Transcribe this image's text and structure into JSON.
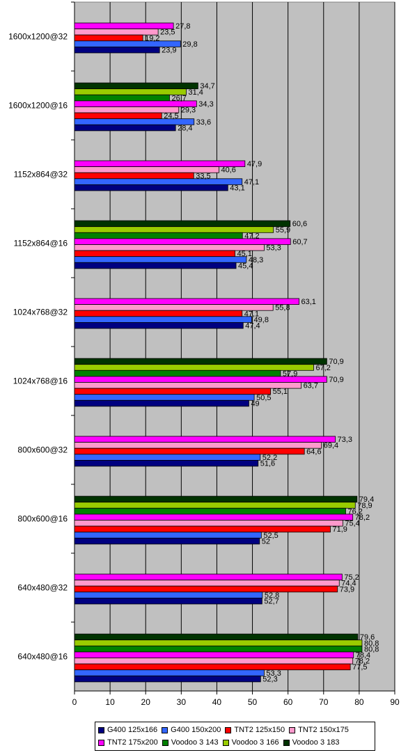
{
  "chart_data": {
    "type": "bar",
    "orientation": "horizontal",
    "xlim": [
      0,
      90
    ],
    "x_ticks": [
      0,
      10,
      20,
      30,
      40,
      50,
      60,
      70,
      80,
      90
    ],
    "grid": true,
    "legend_position": "bottom",
    "plot_background": "#c0c0c0",
    "series_order_top_to_bottom": [
      "Voodoo 3 183",
      "Voodoo 3 166",
      "Voodoo 3 143",
      "TNT2 175x200",
      "TNT2 150x175",
      "TNT2 125x150",
      "G400 150x200",
      "G400 125x166"
    ],
    "series": [
      {
        "name": "G400 125x166",
        "color": "#000080"
      },
      {
        "name": "G400 150x200",
        "color": "#3366ff"
      },
      {
        "name": "TNT2 125x150",
        "color": "#ff0000"
      },
      {
        "name": "TNT2 150x175",
        "color": "#ff99cc"
      },
      {
        "name": "TNT2 175x200",
        "color": "#ff00ff"
      },
      {
        "name": "Voodoo 3 143",
        "color": "#008000"
      },
      {
        "name": "Voodoo 3 166",
        "color": "#99cc00"
      },
      {
        "name": "Voodoo 3 183",
        "color": "#003300"
      }
    ],
    "categories": [
      {
        "label": "1600x1200@32",
        "values": {
          "G400 125x166": 23.9,
          "G400 150x200": 29.8,
          "TNT2 125x150": 19.2,
          "TNT2 150x175": 23.5,
          "TNT2 175x200": 27.8
        },
        "value_labels": {
          "G400 125x166": "23,9",
          "G400 150x200": "29,8",
          "TNT2 125x150": "19,2",
          "TNT2 150x175": "23,5",
          "TNT2 175x200": "27,8"
        }
      },
      {
        "label": "1600x1200@16",
        "values": {
          "G400 125x166": 28.4,
          "G400 150x200": 33.6,
          "TNT2 125x150": 24.5,
          "TNT2 150x175": 29.3,
          "TNT2 175x200": 34.3,
          "Voodoo 3 143": 26.7,
          "Voodoo 3 166": 31.4,
          "Voodoo 3 183": 34.7
        },
        "value_labels": {
          "G400 125x166": "28,4",
          "G400 150x200": "33,6",
          "TNT2 125x150": "24,5",
          "TNT2 150x175": "29,3",
          "TNT2 175x200": "34,3",
          "Voodoo 3 143": "26,7",
          "Voodoo 3 166": "31,4",
          "Voodoo 3 183": "34,7"
        }
      },
      {
        "label": "1152x864@32",
        "values": {
          "G400 125x166": 43.1,
          "G400 150x200": 47.1,
          "TNT2 125x150": 33.5,
          "TNT2 150x175": 40.6,
          "TNT2 175x200": 47.9
        },
        "value_labels": {
          "G400 125x166": "43,1",
          "G400 150x200": "47,1",
          "TNT2 125x150": "33,5",
          "TNT2 150x175": "40,6",
          "TNT2 175x200": "47,9"
        }
      },
      {
        "label": "1152x864@16",
        "values": {
          "G400 125x166": 45.4,
          "G400 150x200": 48.3,
          "TNT2 125x150": 45.1,
          "TNT2 150x175": 53.3,
          "TNT2 175x200": 60.7,
          "Voodoo 3 143": 47.2,
          "Voodoo 3 166": 55.9,
          "Voodoo 3 183": 60.6
        },
        "value_labels": {
          "G400 125x166": "45,4",
          "G400 150x200": "48,3",
          "TNT2 125x150": "45,1",
          "TNT2 150x175": "53,3",
          "TNT2 175x200": "60,7",
          "Voodoo 3 143": "47,2",
          "Voodoo 3 166": "55,9",
          "Voodoo 3 183": "60,6"
        }
      },
      {
        "label": "1024x768@32",
        "values": {
          "G400 125x166": 47.4,
          "G400 150x200": 49.8,
          "TNT2 125x150": 47.1,
          "TNT2 150x175": 55.8,
          "TNT2 175x200": 63.1
        },
        "value_labels": {
          "G400 125x166": "47,4",
          "G400 150x200": "49,8",
          "TNT2 125x150": "47,1",
          "TNT2 150x175": "55,8",
          "TNT2 175x200": "63,1"
        }
      },
      {
        "label": "1024x768@16",
        "values": {
          "G400 125x166": 49,
          "G400 150x200": 50.5,
          "TNT2 125x150": 55.1,
          "TNT2 150x175": 63.7,
          "TNT2 175x200": 70.9,
          "Voodoo 3 143": 57.9,
          "Voodoo 3 166": 67.2,
          "Voodoo 3 183": 70.9
        },
        "value_labels": {
          "G400 125x166": "49",
          "G400 150x200": "50,5",
          "TNT2 125x150": "55,1",
          "TNT2 150x175": "63,7",
          "TNT2 175x200": "70,9",
          "Voodoo 3 143": "57,9",
          "Voodoo 3 166": "67,2",
          "Voodoo 3 183": "70,9"
        }
      },
      {
        "label": "800x600@32",
        "values": {
          "G400 125x166": 51.6,
          "G400 150x200": 52.2,
          "TNT2 125x150": 64.6,
          "TNT2 150x175": 69.4,
          "TNT2 175x200": 73.3
        },
        "value_labels": {
          "G400 125x166": "51,6",
          "G400 150x200": "52,2",
          "TNT2 125x150": "64,6",
          "TNT2 150x175": "69,4",
          "TNT2 175x200": "73,3"
        }
      },
      {
        "label": "800x600@16",
        "values": {
          "G400 125x166": 52,
          "G400 150x200": 52.5,
          "TNT2 125x150": 71.9,
          "TNT2 150x175": 75.4,
          "TNT2 175x200": 78.2,
          "Voodoo 3 143": 76.2,
          "Voodoo 3 166": 78.9,
          "Voodoo 3 183": 79.4
        },
        "value_labels": {
          "G400 125x166": "52",
          "G400 150x200": "52,5",
          "TNT2 125x150": "71,9",
          "TNT2 150x175": "75,4",
          "TNT2 175x200": "78,2",
          "Voodoo 3 143": "76,2",
          "Voodoo 3 166": "78,9",
          "Voodoo 3 183": "79,4"
        }
      },
      {
        "label": "640x480@32",
        "values": {
          "G400 125x166": 52.7,
          "G400 150x200": 52.8,
          "TNT2 125x150": 73.9,
          "TNT2 150x175": 74.4,
          "TNT2 175x200": 75.2
        },
        "value_labels": {
          "G400 125x166": "52,7",
          "G400 150x200": "52,8",
          "TNT2 125x150": "73,9",
          "TNT2 150x175": "74,4",
          "TNT2 175x200": "75,2"
        }
      },
      {
        "label": "640x480@16",
        "values": {
          "G400 125x166": 52.3,
          "G400 150x200": 53.3,
          "TNT2 125x150": 77.5,
          "TNT2 150x175": 78.2,
          "TNT2 175x200": 78.4,
          "Voodoo 3 143": 80.8,
          "Voodoo 3 166": 80.8,
          "Voodoo 3 183": 79.6
        },
        "value_labels": {
          "G400 125x166": "52,3",
          "G400 150x200": "53,3",
          "TNT2 125x150": "77,5",
          "TNT2 150x175": "78,2",
          "TNT2 175x200": "78,4",
          "Voodoo 3 143": "80,8",
          "Voodoo 3 166": "80,8",
          "Voodoo 3 183": "79,6"
        }
      }
    ]
  }
}
